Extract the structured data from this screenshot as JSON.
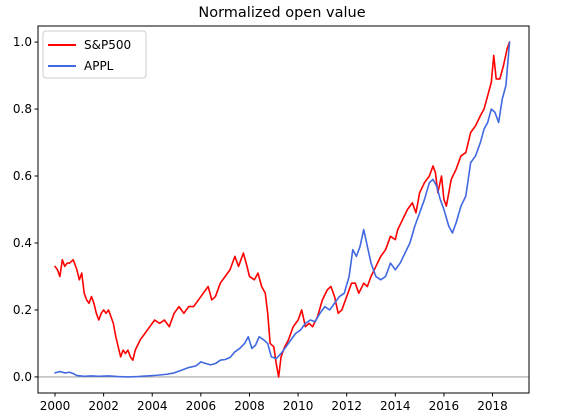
{
  "chart_data": {
    "type": "line",
    "title": "Normalized open value",
    "xlabel": "",
    "ylabel": "",
    "xlim": [
      1999.3,
      2019.5
    ],
    "ylim": [
      -0.048,
      1.048
    ],
    "x_ticks": [
      2000,
      2002,
      2004,
      2006,
      2008,
      2010,
      2012,
      2014,
      2016,
      2018
    ],
    "x_tick_labels": [
      "2000",
      "2002",
      "2004",
      "2006",
      "2008",
      "2010",
      "2012",
      "2014",
      "2016",
      "2018"
    ],
    "y_ticks": [
      0.0,
      0.2,
      0.4,
      0.6,
      0.8,
      1.0
    ],
    "y_tick_labels": [
      "0.0",
      "0.2",
      "0.4",
      "0.6",
      "0.8",
      "1.0"
    ],
    "grid": false,
    "legend_position": "top-left",
    "reference_line": {
      "y": 0.0,
      "color": "#a6a6a6"
    },
    "series": [
      {
        "name": "S&P500",
        "color": "#ff0000",
        "points": [
          [
            2000.0,
            0.33
          ],
          [
            2000.1,
            0.32
          ],
          [
            2000.2,
            0.3
          ],
          [
            2000.3,
            0.35
          ],
          [
            2000.4,
            0.33
          ],
          [
            2000.5,
            0.34
          ],
          [
            2000.6,
            0.34
          ],
          [
            2000.75,
            0.35
          ],
          [
            2000.9,
            0.32
          ],
          [
            2001.0,
            0.29
          ],
          [
            2001.1,
            0.31
          ],
          [
            2001.2,
            0.25
          ],
          [
            2001.3,
            0.23
          ],
          [
            2001.4,
            0.22
          ],
          [
            2001.5,
            0.24
          ],
          [
            2001.6,
            0.22
          ],
          [
            2001.7,
            0.19
          ],
          [
            2001.8,
            0.17
          ],
          [
            2001.9,
            0.19
          ],
          [
            2002.0,
            0.2
          ],
          [
            2002.1,
            0.19
          ],
          [
            2002.2,
            0.2
          ],
          [
            2002.3,
            0.18
          ],
          [
            2002.4,
            0.16
          ],
          [
            2002.5,
            0.12
          ],
          [
            2002.6,
            0.09
          ],
          [
            2002.7,
            0.06
          ],
          [
            2002.8,
            0.08
          ],
          [
            2002.9,
            0.07
          ],
          [
            2003.0,
            0.08
          ],
          [
            2003.1,
            0.06
          ],
          [
            2003.2,
            0.05
          ],
          [
            2003.3,
            0.08
          ],
          [
            2003.5,
            0.11
          ],
          [
            2003.7,
            0.13
          ],
          [
            2003.9,
            0.15
          ],
          [
            2004.1,
            0.17
          ],
          [
            2004.3,
            0.16
          ],
          [
            2004.5,
            0.17
          ],
          [
            2004.7,
            0.15
          ],
          [
            2004.9,
            0.19
          ],
          [
            2005.1,
            0.21
          ],
          [
            2005.3,
            0.19
          ],
          [
            2005.5,
            0.21
          ],
          [
            2005.7,
            0.21
          ],
          [
            2005.9,
            0.23
          ],
          [
            2006.1,
            0.25
          ],
          [
            2006.3,
            0.27
          ],
          [
            2006.45,
            0.23
          ],
          [
            2006.6,
            0.24
          ],
          [
            2006.8,
            0.28
          ],
          [
            2007.0,
            0.3
          ],
          [
            2007.2,
            0.32
          ],
          [
            2007.4,
            0.36
          ],
          [
            2007.55,
            0.33
          ],
          [
            2007.75,
            0.37
          ],
          [
            2007.9,
            0.33
          ],
          [
            2008.0,
            0.3
          ],
          [
            2008.2,
            0.29
          ],
          [
            2008.35,
            0.31
          ],
          [
            2008.5,
            0.27
          ],
          [
            2008.65,
            0.25
          ],
          [
            2008.75,
            0.19
          ],
          [
            2008.85,
            0.1
          ],
          [
            2009.0,
            0.09
          ],
          [
            2009.1,
            0.04
          ],
          [
            2009.2,
            0.0
          ],
          [
            2009.3,
            0.06
          ],
          [
            2009.45,
            0.09
          ],
          [
            2009.6,
            0.11
          ],
          [
            2009.8,
            0.15
          ],
          [
            2010.0,
            0.17
          ],
          [
            2010.15,
            0.2
          ],
          [
            2010.3,
            0.15
          ],
          [
            2010.45,
            0.16
          ],
          [
            2010.6,
            0.15
          ],
          [
            2010.8,
            0.18
          ],
          [
            2011.0,
            0.23
          ],
          [
            2011.2,
            0.26
          ],
          [
            2011.35,
            0.27
          ],
          [
            2011.5,
            0.24
          ],
          [
            2011.65,
            0.19
          ],
          [
            2011.8,
            0.2
          ],
          [
            2012.0,
            0.24
          ],
          [
            2012.2,
            0.28
          ],
          [
            2012.35,
            0.28
          ],
          [
            2012.5,
            0.25
          ],
          [
            2012.7,
            0.28
          ],
          [
            2012.85,
            0.27
          ],
          [
            2013.0,
            0.3
          ],
          [
            2013.2,
            0.33
          ],
          [
            2013.4,
            0.36
          ],
          [
            2013.6,
            0.38
          ],
          [
            2013.8,
            0.42
          ],
          [
            2014.0,
            0.41
          ],
          [
            2014.1,
            0.44
          ],
          [
            2014.3,
            0.47
          ],
          [
            2014.5,
            0.5
          ],
          [
            2014.7,
            0.52
          ],
          [
            2014.85,
            0.49
          ],
          [
            2015.0,
            0.55
          ],
          [
            2015.2,
            0.58
          ],
          [
            2015.4,
            0.6
          ],
          [
            2015.55,
            0.63
          ],
          [
            2015.65,
            0.61
          ],
          [
            2015.75,
            0.55
          ],
          [
            2015.9,
            0.6
          ],
          [
            2016.0,
            0.53
          ],
          [
            2016.1,
            0.51
          ],
          [
            2016.3,
            0.59
          ],
          [
            2016.5,
            0.62
          ],
          [
            2016.7,
            0.66
          ],
          [
            2016.9,
            0.67
          ],
          [
            2017.1,
            0.73
          ],
          [
            2017.3,
            0.75
          ],
          [
            2017.5,
            0.78
          ],
          [
            2017.65,
            0.8
          ],
          [
            2017.8,
            0.84
          ],
          [
            2017.95,
            0.88
          ],
          [
            2018.05,
            0.96
          ],
          [
            2018.15,
            0.89
          ],
          [
            2018.3,
            0.89
          ],
          [
            2018.45,
            0.93
          ],
          [
            2018.6,
            0.98
          ],
          [
            2018.7,
            1.0
          ]
        ]
      },
      {
        "name": "APPL",
        "color": "#4169e1",
        "points": [
          [
            2000.0,
            0.012
          ],
          [
            2000.2,
            0.016
          ],
          [
            2000.4,
            0.012
          ],
          [
            2000.6,
            0.014
          ],
          [
            2000.75,
            0.01
          ],
          [
            2000.9,
            0.004
          ],
          [
            2001.2,
            0.002
          ],
          [
            2001.5,
            0.003
          ],
          [
            2001.8,
            0.002
          ],
          [
            2002.2,
            0.003
          ],
          [
            2002.6,
            0.001
          ],
          [
            2003.0,
            0.0
          ],
          [
            2003.4,
            0.001
          ],
          [
            2003.8,
            0.003
          ],
          [
            2004.2,
            0.005
          ],
          [
            2004.6,
            0.008
          ],
          [
            2004.9,
            0.012
          ],
          [
            2005.2,
            0.02
          ],
          [
            2005.5,
            0.028
          ],
          [
            2005.8,
            0.033
          ],
          [
            2006.0,
            0.045
          ],
          [
            2006.2,
            0.04
          ],
          [
            2006.4,
            0.036
          ],
          [
            2006.6,
            0.04
          ],
          [
            2006.8,
            0.05
          ],
          [
            2007.0,
            0.052
          ],
          [
            2007.2,
            0.058
          ],
          [
            2007.4,
            0.075
          ],
          [
            2007.6,
            0.085
          ],
          [
            2007.8,
            0.1
          ],
          [
            2007.95,
            0.12
          ],
          [
            2008.1,
            0.085
          ],
          [
            2008.25,
            0.095
          ],
          [
            2008.4,
            0.12
          ],
          [
            2008.6,
            0.11
          ],
          [
            2008.75,
            0.1
          ],
          [
            2008.9,
            0.06
          ],
          [
            2009.1,
            0.055
          ],
          [
            2009.3,
            0.07
          ],
          [
            2009.5,
            0.09
          ],
          [
            2009.7,
            0.11
          ],
          [
            2009.9,
            0.13
          ],
          [
            2010.1,
            0.14
          ],
          [
            2010.3,
            0.16
          ],
          [
            2010.5,
            0.17
          ],
          [
            2010.7,
            0.165
          ],
          [
            2010.9,
            0.19
          ],
          [
            2011.1,
            0.21
          ],
          [
            2011.3,
            0.2
          ],
          [
            2011.5,
            0.22
          ],
          [
            2011.7,
            0.24
          ],
          [
            2011.9,
            0.25
          ],
          [
            2012.1,
            0.3
          ],
          [
            2012.25,
            0.38
          ],
          [
            2012.4,
            0.36
          ],
          [
            2012.55,
            0.39
          ],
          [
            2012.7,
            0.44
          ],
          [
            2012.85,
            0.39
          ],
          [
            2013.0,
            0.34
          ],
          [
            2013.2,
            0.3
          ],
          [
            2013.4,
            0.29
          ],
          [
            2013.6,
            0.3
          ],
          [
            2013.8,
            0.34
          ],
          [
            2014.0,
            0.32
          ],
          [
            2014.2,
            0.34
          ],
          [
            2014.4,
            0.37
          ],
          [
            2014.6,
            0.4
          ],
          [
            2014.8,
            0.45
          ],
          [
            2015.0,
            0.49
          ],
          [
            2015.2,
            0.53
          ],
          [
            2015.4,
            0.58
          ],
          [
            2015.55,
            0.59
          ],
          [
            2015.7,
            0.57
          ],
          [
            2015.85,
            0.53
          ],
          [
            2016.0,
            0.5
          ],
          [
            2016.2,
            0.45
          ],
          [
            2016.35,
            0.43
          ],
          [
            2016.5,
            0.46
          ],
          [
            2016.7,
            0.51
          ],
          [
            2016.9,
            0.54
          ],
          [
            2017.1,
            0.64
          ],
          [
            2017.3,
            0.66
          ],
          [
            2017.5,
            0.7
          ],
          [
            2017.65,
            0.74
          ],
          [
            2017.8,
            0.76
          ],
          [
            2017.95,
            0.8
          ],
          [
            2018.1,
            0.79
          ],
          [
            2018.25,
            0.76
          ],
          [
            2018.4,
            0.83
          ],
          [
            2018.55,
            0.87
          ],
          [
            2018.7,
            1.0
          ]
        ]
      }
    ]
  }
}
